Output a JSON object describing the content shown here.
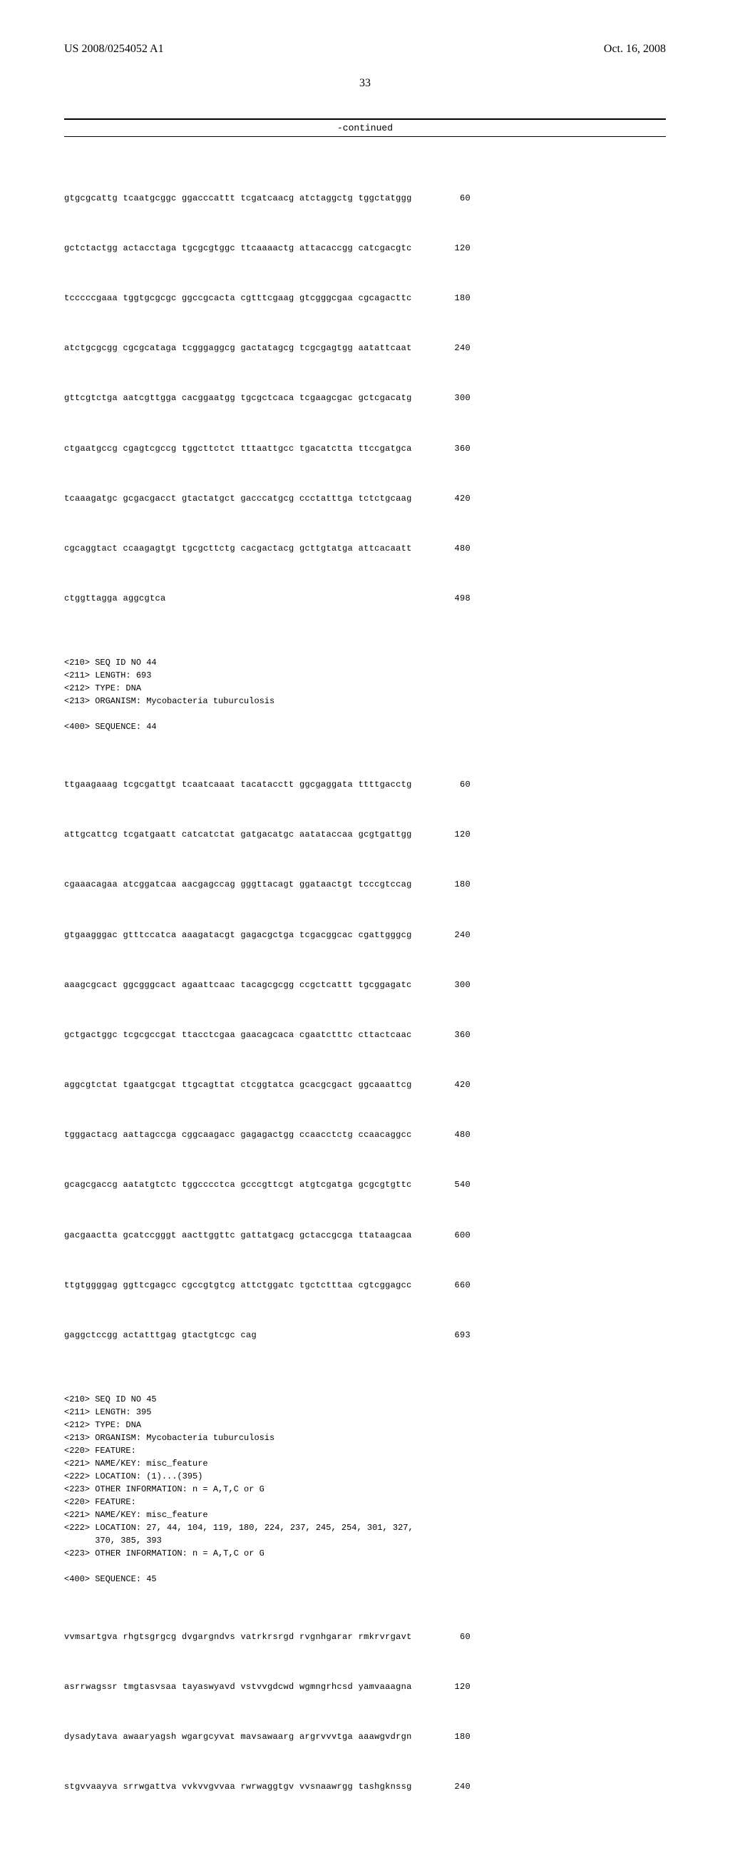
{
  "header": {
    "pub_number": "US 2008/0254052 A1",
    "pub_date": "Oct. 16, 2008"
  },
  "page_number": "33",
  "continued_label": "-continued",
  "seq43": {
    "rows": [
      {
        "t": "gtgcgcattg tcaatgcggc ggacccattt tcgatcaacg atctaggctg tggctatggg",
        "n": "60"
      },
      {
        "t": "gctctactgg actacctaga tgcgcgtggc ttcaaaactg attacaccgg catcgacgtc",
        "n": "120"
      },
      {
        "t": "tcccccgaaa tggtgcgcgc ggccgcacta cgtttcgaag gtcgggcgaa cgcagacttc",
        "n": "180"
      },
      {
        "t": "atctgcgcgg cgcgcataga tcgggaggcg gactatagcg tcgcgagtgg aatattcaat",
        "n": "240"
      },
      {
        "t": "gttcgtctga aatcgttgga cacggaatgg tgcgctcaca tcgaagcgac gctcgacatg",
        "n": "300"
      },
      {
        "t": "ctgaatgccg cgagtcgccg tggcttctct tttaattgcc tgacatctta ttccgatgca",
        "n": "360"
      },
      {
        "t": "tcaaagatgc gcgacgacct gtactatgct gacccatgcg ccctatttga tctctgcaag",
        "n": "420"
      },
      {
        "t": "cgcaggtact ccaagagtgt tgcgcttctg cacgactacg gcttgtatga attcacaatt",
        "n": "480"
      },
      {
        "t": "ctggttagga aggcgtca",
        "n": "498"
      }
    ]
  },
  "meta44": "<210> SEQ ID NO 44\n<211> LENGTH: 693\n<212> TYPE: DNA\n<213> ORGANISM: Mycobacteria tuburculosis\n\n<400> SEQUENCE: 44",
  "seq44": {
    "rows": [
      {
        "t": "ttgaagaaag tcgcgattgt tcaatcaaat tacatacctt ggcgaggata ttttgacctg",
        "n": "60"
      },
      {
        "t": "attgcattcg tcgatgaatt catcatctat gatgacatgc aatataccaa gcgtgattgg",
        "n": "120"
      },
      {
        "t": "cgaaacagaa atcggatcaa aacgagccag gggttacagt ggataactgt tcccgtccag",
        "n": "180"
      },
      {
        "t": "gtgaagggac gtttccatca aaagatacgt gagacgctga tcgacggcac cgattgggcg",
        "n": "240"
      },
      {
        "t": "aaagcgcact ggcgggcact agaattcaac tacagcgcgg ccgctcattt tgcggagatc",
        "n": "300"
      },
      {
        "t": "gctgactggc tcgcgccgat ttacctcgaa gaacagcaca cgaatctttc cttactcaac",
        "n": "360"
      },
      {
        "t": "aggcgtctat tgaatgcgat ttgcagttat ctcggtatca gcacgcgact ggcaaattcg",
        "n": "420"
      },
      {
        "t": "tgggactacg aattagccga cggcaagacc gagagactgg ccaacctctg ccaacaggcc",
        "n": "480"
      },
      {
        "t": "gcagcgaccg aatatgtctc tggcccctca gcccgttcgt atgtcgatga gcgcgtgttc",
        "n": "540"
      },
      {
        "t": "gacgaactta gcatccgggt aacttggttc gattatgacg gctaccgcga ttataagcaa",
        "n": "600"
      },
      {
        "t": "ttgtggggag ggttcgagcc cgccgtgtcg attctggatc tgctctttaa cgtcggagcc",
        "n": "660"
      },
      {
        "t": "gaggctccgg actatttgag gtactgtcgc cag",
        "n": "693"
      }
    ]
  },
  "meta45": "<210> SEQ ID NO 45\n<211> LENGTH: 395\n<212> TYPE: DNA\n<213> ORGANISM: Mycobacteria tuburculosis\n<220> FEATURE:\n<221> NAME/KEY: misc_feature\n<222> LOCATION: (1)...(395)\n<223> OTHER INFORMATION: n = A,T,C or G\n<220> FEATURE:\n<221> NAME/KEY: misc_feature\n<222> LOCATION: 27, 44, 104, 119, 180, 224, 237, 245, 254, 301, 327,\n      370, 385, 393\n<223> OTHER INFORMATION: n = A,T,C or G\n\n<400> SEQUENCE: 45",
  "seq45": {
    "rows": [
      {
        "t": "vvmsartgva rhgtsgrgcg dvgargndvs vatrkrsrgd rvgnhgarar rmkrvrgavt",
        "n": "60"
      },
      {
        "t": "asrrwagssr tmgtasvsaa tayaswyavd vstvvgdcwd wgmngrhcsd yamvaaagna",
        "n": "120"
      },
      {
        "t": "dysadytava awaaryagsh wgargcyvat mavsawaarg argrvvvtga aaawgvdrgn",
        "n": "180"
      },
      {
        "t": "stgvvaayva srrwgattva vvkvvgvvaa rwrwaggtgv vvsnaawrgg tashgknssg",
        "n": "240"
      }
    ]
  }
}
